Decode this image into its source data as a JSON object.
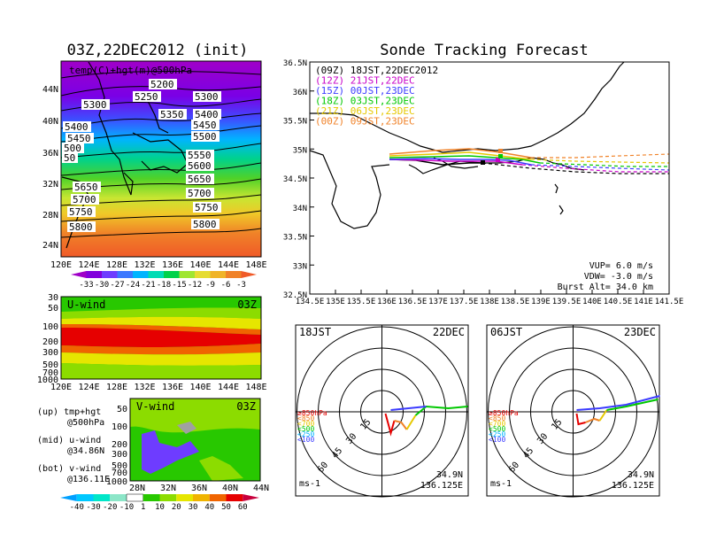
{
  "temp_map": {
    "title": "03Z,22DEC2012 (init)",
    "label": "temp(C)+hgt(m)@500hPa",
    "lon_ticks": [
      "120E",
      "124E",
      "128E",
      "132E",
      "136E",
      "140E",
      "144E",
      "148E"
    ],
    "lat_ticks": [
      "44N",
      "40N",
      "36N",
      "32N",
      "28N",
      "24N"
    ],
    "contour_labels": [
      "5200",
      "5250",
      "5300",
      "5300",
      "5350",
      "5400",
      "5400",
      "5450",
      "5450",
      "5500",
      "500",
      "50",
      "5550",
      "5600",
      "5650",
      "5650",
      "5700",
      "5700",
      "5750",
      "5750",
      "5800",
      "5800"
    ],
    "colorbar_ticks": [
      "-33",
      "-30",
      "-27",
      "-24",
      "-21",
      "-18",
      "-15",
      "-12",
      "-9",
      "-6",
      "-3"
    ],
    "colors": [
      "#a000c8",
      "#8200dc",
      "#6e3cff",
      "#3c78ff",
      "#00b4ff",
      "#00dcb4",
      "#00d24a",
      "#a0e632",
      "#e6dc32",
      "#f0b428",
      "#f08228",
      "#f05a28"
    ]
  },
  "tracking": {
    "title": "Sonde Tracking Forecast",
    "runs": [
      {
        "label": "(09Z)  18JST,22DEC2012",
        "color": "#000000"
      },
      {
        "label": "(12Z)  21JST,22DEC",
        "color": "#c800c8"
      },
      {
        "label": "(15Z)  00JST,23DEC",
        "color": "#3c3cff"
      },
      {
        "label": "(18Z)  03JST,23DEC",
        "color": "#00c800"
      },
      {
        "label": "(21Z)  06JST,23DEC",
        "color": "#e6c800"
      },
      {
        "label": "(00Z)  09JST,23DEC",
        "color": "#f08228"
      }
    ],
    "lat_ticks": [
      "36.5N",
      "36N",
      "35.5N",
      "35N",
      "34.5N",
      "34N",
      "33.5N",
      "33N",
      "32.5N"
    ],
    "lon_ticks": [
      "134.5E",
      "135E",
      "135.5E",
      "136E",
      "136.5E",
      "137E",
      "137.5E",
      "138E",
      "138.5E",
      "139E",
      "139.5E",
      "140E",
      "140.5E",
      "141E",
      "141.5E"
    ],
    "vup": "VUP=  6.0  m/s",
    "vdw": "VDW= -3.0  m/s",
    "burst": "Burst Alt=  34.0  km"
  },
  "uwind": {
    "label": "U-wind",
    "time": "03Z",
    "p_ticks": [
      "30",
      "50",
      "100",
      "200",
      "300",
      "500",
      "700",
      "1000"
    ],
    "lon_ticks": [
      "120E",
      "124E",
      "128E",
      "132E",
      "136E",
      "140E",
      "144E",
      "148E"
    ]
  },
  "vwind": {
    "label": "V-wind",
    "time": "03Z",
    "p_ticks": [
      "50",
      "100",
      "200",
      "300",
      "500",
      "700",
      "1000"
    ],
    "lat_ticks": [
      "28N",
      "32N",
      "36N",
      "40N",
      "44N"
    ]
  },
  "wind_colorbar": {
    "ticks": [
      "-40",
      "-30",
      "-20",
      "-10",
      "1",
      "10",
      "20",
      "30",
      "40",
      "50",
      "60"
    ],
    "colors": [
      "#00a0ff",
      "#00c8ff",
      "#00e6c8",
      "#8ce6c8",
      "#ffffff",
      "#28c800",
      "#8cdc00",
      "#e6e600",
      "#f0b400",
      "#f06400",
      "#e60000",
      "#c8003c"
    ]
  },
  "legend_text": {
    "up1": "(up) tmp+hgt",
    "up2": "@500hPa",
    "mid1": "(mid) u-wind",
    "mid2": "@34.86N",
    "bot1": "(bot) v-wind",
    "bot2": "@136.11E"
  },
  "hodo1": {
    "time": "18JST",
    "date": "22DEC",
    "rings": [
      "15",
      "30",
      "45",
      "60"
    ],
    "levels": [
      {
        "label": "≥850hPa",
        "color": "#e60000"
      },
      {
        "label": "<850",
        "color": "#f08228"
      },
      {
        "label": "<700",
        "color": "#e6c800"
      },
      {
        "label": "<500",
        "color": "#00c800"
      },
      {
        "label": "<250",
        "color": "#00b4ff"
      },
      {
        "label": "<100",
        "color": "#3c3cff"
      }
    ],
    "units": "ms-1",
    "loc1": "34.9N",
    "loc2": "136.125E"
  },
  "hodo2": {
    "time": "06JST",
    "date": "23DEC",
    "rings": [
      "15",
      "30",
      "45",
      "60"
    ],
    "levels": [
      {
        "label": "≥850hPa",
        "color": "#e60000"
      },
      {
        "label": "<850",
        "color": "#f08228"
      },
      {
        "label": "<700",
        "color": "#e6c800"
      },
      {
        "label": "<500",
        "color": "#00c800"
      },
      {
        "label": "<250",
        "color": "#00b4ff"
      },
      {
        "label": "<100",
        "color": "#3c3cff"
      }
    ],
    "units": "ms-1",
    "loc1": "34.9N",
    "loc2": "136.125E"
  }
}
